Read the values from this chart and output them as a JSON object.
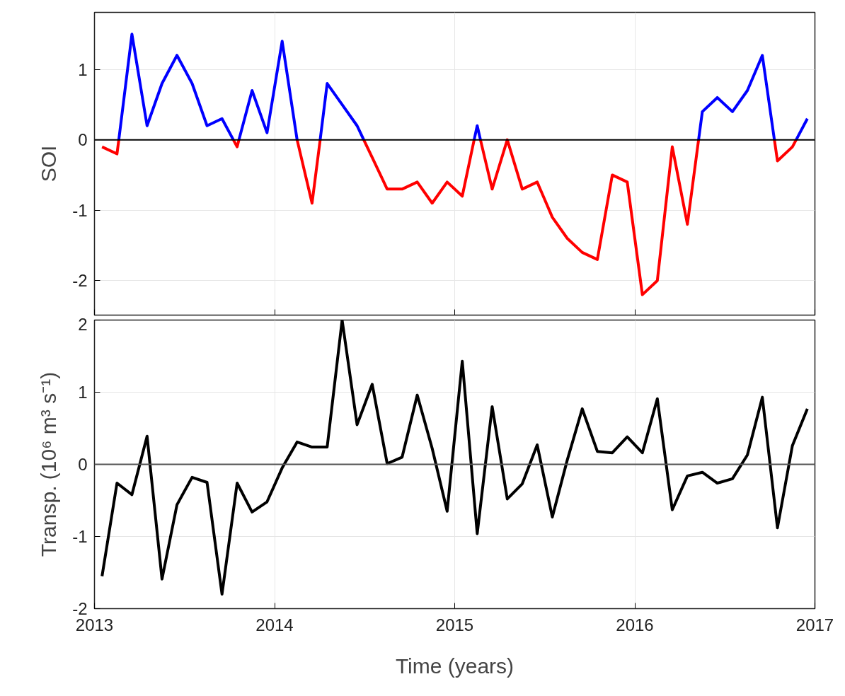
{
  "chart_data": [
    {
      "type": "line",
      "ylabel": "SOI",
      "xlim": [
        2013,
        2017
      ],
      "xticks": [
        2013,
        2014,
        2015,
        2016,
        2017
      ],
      "ylim": [
        -2.49,
        1.81
      ],
      "yticks": [
        -2,
        -1,
        0,
        1
      ],
      "tick_labels": "y",
      "grid": true,
      "ref_lines": [
        {
          "axis": "y",
          "value": 0,
          "color": "#000000"
        }
      ],
      "series": [
        {
          "color": "#0000ff",
          "x": [
            2013.135,
            2013.208,
            2013.292,
            2013.375,
            2013.458,
            2013.542,
            2013.625,
            2013.708,
            2013.771,
            null,
            2013.802,
            2013.875,
            2013.958,
            2014.042,
            2014.125,
            null,
            2014.253,
            2014.292,
            2014.375,
            2014.458,
            2014.495,
            null,
            2015.108,
            2015.125,
            2015.143,
            null,
            2016.354,
            2016.375,
            2016.458,
            2016.542,
            2016.625,
            2016.708,
            2016.775,
            null,
            2016.896,
            2016.958
          ],
          "values": [
            0,
            1.5,
            0.2,
            0.8,
            1.2,
            0.8,
            0.2,
            0.3,
            0,
            null,
            0,
            0.7,
            0.1,
            1.4,
            0,
            null,
            0,
            0.8,
            0.5,
            0.2,
            0,
            null,
            0,
            0.2,
            0,
            null,
            0,
            0.4,
            0.6,
            0.4,
            0.7,
            1.2,
            0,
            null,
            0,
            0.3
          ]
        },
        {
          "color": "#ff0000",
          "x": [
            2013.042,
            2013.125,
            2013.135,
            null,
            2013.771,
            2013.792,
            2013.802,
            null,
            2014.125,
            2014.208,
            2014.253,
            null,
            2014.495,
            2014.542,
            2014.625,
            2014.708,
            2014.792,
            2014.875,
            2014.958,
            2015.042,
            2015.108,
            null,
            2015.143,
            2015.208,
            2015.292,
            2015.375,
            2015.458,
            2015.542,
            2015.625,
            2015.708,
            2015.792,
            2015.875,
            2015.958,
            2016.042,
            2016.125,
            2016.208,
            2016.292,
            2016.354,
            null,
            2016.775,
            2016.792,
            2016.875,
            2016.896
          ],
          "values": [
            -0.1,
            -0.2,
            0,
            null,
            0,
            -0.1,
            0,
            null,
            0,
            -0.9,
            0,
            null,
            0,
            -0.25,
            -0.7,
            -0.7,
            -0.6,
            -0.9,
            -0.6,
            -0.8,
            0,
            null,
            0,
            -0.7,
            0,
            -0.7,
            -0.6,
            -1.1,
            -1.4,
            -1.6,
            -1.7,
            -0.5,
            -0.6,
            -2.2,
            -2.0,
            -0.1,
            -1.2,
            0,
            null,
            0,
            -0.3,
            -0.1,
            0
          ]
        }
      ]
    },
    {
      "type": "line",
      "xlabel": "Time (years)",
      "ylabel": "Transp. (10⁶ m³ s⁻¹)",
      "xlim": [
        2013,
        2017
      ],
      "xticks": [
        2013,
        2014,
        2015,
        2016,
        2017
      ],
      "ylim": [
        -2,
        2
      ],
      "yticks": [
        -2,
        -1,
        0,
        1,
        2
      ],
      "grid": true,
      "ref_lines": [
        {
          "axis": "y",
          "value": 0,
          "color": "#555555"
        }
      ],
      "x": [
        2013.042,
        2013.125,
        2013.208,
        2013.292,
        2013.375,
        2013.458,
        2013.542,
        2013.625,
        2013.708,
        2013.792,
        2013.875,
        2013.958,
        2014.042,
        2014.125,
        2014.208,
        2014.292,
        2014.375,
        2014.458,
        2014.542,
        2014.625,
        2014.708,
        2014.792,
        2014.875,
        2014.958,
        2015.042,
        2015.125,
        2015.208,
        2015.292,
        2015.375,
        2015.458,
        2015.542,
        2015.625,
        2015.708,
        2015.792,
        2015.875,
        2015.958,
        2016.042,
        2016.125,
        2016.208,
        2016.292,
        2016.375,
        2016.458,
        2016.542,
        2016.625,
        2016.708,
        2016.792,
        2016.875,
        2016.958
      ],
      "series": [
        {
          "color": "#000000",
          "values": [
            -1.55,
            -0.26,
            -0.42,
            0.39,
            -1.59,
            -0.56,
            -0.18,
            -0.25,
            -1.8,
            -0.26,
            -0.66,
            -0.52,
            -0.05,
            0.31,
            0.24,
            0.24,
            2.0,
            0.55,
            1.11,
            0.01,
            0.1,
            0.96,
            0.22,
            -0.65,
            1.43,
            -0.96,
            0.8,
            -0.48,
            -0.27,
            0.27,
            -0.73,
            0.06,
            0.77,
            0.18,
            0.16,
            0.38,
            0.16,
            0.91,
            -0.63,
            -0.16,
            -0.11,
            -0.26,
            -0.2,
            0.13,
            0.93,
            -0.88,
            0.26,
            0.77
          ]
        }
      ]
    }
  ]
}
